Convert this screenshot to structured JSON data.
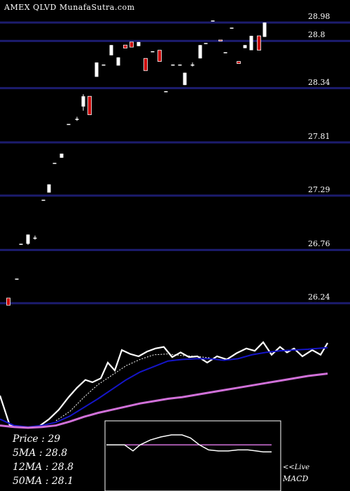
{
  "header": "AMEX  QLVD MunafaSutra.com",
  "chart_data": [
    {
      "type": "candlestick",
      "title": "AMEX  QLVD MunafaSutra.com",
      "ylim": [
        26.05,
        29.2
      ],
      "yticks": [
        28.98,
        28.8,
        28.34,
        27.81,
        27.29,
        26.76,
        26.24
      ],
      "bar_width": 5,
      "candles": [
        {
          "x": 12,
          "o": 26.29,
          "c": 26.22,
          "h": 26.29,
          "l": 26.22
        },
        {
          "x": 24,
          "o": 26.48,
          "c": 26.48,
          "h": 26.48,
          "l": 26.48
        },
        {
          "x": 30,
          "o": 26.81,
          "c": 26.82,
          "h": 26.82,
          "l": 26.81
        },
        {
          "x": 40,
          "o": 26.82,
          "c": 26.91,
          "h": 26.91,
          "l": 26.81
        },
        {
          "x": 50,
          "o": 26.87,
          "c": 26.88,
          "h": 26.9,
          "l": 26.86
        },
        {
          "x": 62,
          "o": 27.25,
          "c": 27.25,
          "h": 27.25,
          "l": 27.25
        },
        {
          "x": 70,
          "o": 27.32,
          "c": 27.4,
          "h": 27.4,
          "l": 27.32
        },
        {
          "x": 78,
          "o": 27.61,
          "c": 27.61,
          "h": 27.61,
          "l": 27.61
        },
        {
          "x": 88,
          "o": 27.66,
          "c": 27.7,
          "h": 27.7,
          "l": 27.66
        },
        {
          "x": 98,
          "o": 27.99,
          "c": 27.99,
          "h": 27.99,
          "l": 27.99
        },
        {
          "x": 110,
          "o": 28.04,
          "c": 28.04,
          "h": 28.06,
          "l": 28.02
        },
        {
          "x": 119,
          "o": 28.16,
          "c": 28.26,
          "h": 28.28,
          "l": 28.12
        },
        {
          "x": 128,
          "o": 28.26,
          "c": 28.08,
          "h": 28.26,
          "l": 28.08
        },
        {
          "x": 138,
          "o": 28.45,
          "c": 28.59,
          "h": 28.59,
          "l": 28.45
        },
        {
          "x": 148,
          "o": 28.57,
          "c": 28.57,
          "h": 28.57,
          "l": 28.57
        },
        {
          "x": 159,
          "o": 28.66,
          "c": 28.76,
          "h": 28.76,
          "l": 28.66
        },
        {
          "x": 169,
          "o": 28.56,
          "c": 28.64,
          "h": 28.64,
          "l": 28.56
        },
        {
          "x": 179,
          "o": 28.76,
          "c": 28.73,
          "h": 28.76,
          "l": 28.73
        },
        {
          "x": 188,
          "o": 28.79,
          "c": 28.74,
          "h": 28.79,
          "l": 28.74
        },
        {
          "x": 198,
          "o": 28.75,
          "c": 28.79,
          "h": 28.79,
          "l": 28.75
        },
        {
          "x": 208,
          "o": 28.63,
          "c": 28.51,
          "h": 28.63,
          "l": 28.51
        },
        {
          "x": 218,
          "o": 28.7,
          "c": 28.7,
          "h": 28.7,
          "l": 28.7
        },
        {
          "x": 228,
          "o": 28.71,
          "c": 28.6,
          "h": 28.71,
          "l": 28.6
        },
        {
          "x": 237,
          "o": 28.31,
          "c": 28.31,
          "h": 28.31,
          "l": 28.31
        },
        {
          "x": 247,
          "o": 28.57,
          "c": 28.57,
          "h": 28.57,
          "l": 28.57
        },
        {
          "x": 257,
          "o": 28.57,
          "c": 28.57,
          "h": 28.57,
          "l": 28.57
        },
        {
          "x": 264,
          "o": 28.37,
          "c": 28.49,
          "h": 28.49,
          "l": 28.37
        },
        {
          "x": 275,
          "o": 28.57,
          "c": 28.57,
          "h": 28.59,
          "l": 28.55
        },
        {
          "x": 286,
          "o": 28.63,
          "c": 28.76,
          "h": 28.76,
          "l": 28.63
        },
        {
          "x": 294,
          "o": 28.78,
          "c": 28.78,
          "h": 28.78,
          "l": 28.78
        },
        {
          "x": 304,
          "o": 29.0,
          "c": 29.0,
          "h": 29.0,
          "l": 29.0
        },
        {
          "x": 315,
          "o": 28.81,
          "c": 28.8,
          "h": 28.81,
          "l": 28.8
        },
        {
          "x": 322,
          "o": 28.69,
          "c": 28.69,
          "h": 28.69,
          "l": 28.69
        },
        {
          "x": 331,
          "o": 28.93,
          "c": 28.93,
          "h": 28.93,
          "l": 28.93
        },
        {
          "x": 341,
          "o": 28.6,
          "c": 28.58,
          "h": 28.6,
          "l": 28.58
        },
        {
          "x": 350,
          "o": 28.73,
          "c": 28.76,
          "h": 28.76,
          "l": 28.73
        },
        {
          "x": 359,
          "o": 28.71,
          "c": 28.85,
          "h": 28.85,
          "l": 28.71
        },
        {
          "x": 370,
          "o": 28.85,
          "c": 28.71,
          "h": 28.85,
          "l": 28.71
        },
        {
          "x": 378,
          "o": 28.84,
          "c": 28.98,
          "h": 28.98,
          "l": 28.84
        }
      ]
    },
    {
      "type": "line",
      "series": [
        {
          "color": "#ffffff",
          "x": [
            0,
            14,
            30,
            44,
            56,
            70,
            84,
            98,
            110,
            122,
            132,
            144,
            154,
            164,
            174,
            186,
            198,
            210,
            222,
            234,
            246,
            258,
            270,
            282,
            296,
            310,
            324,
            338,
            352,
            364,
            376,
            388,
            400,
            410,
            420,
            432,
            446,
            458,
            468
          ],
          "y": [
            28.0,
            27.62,
            27.6,
            27.59,
            27.61,
            27.7,
            27.82,
            27.98,
            28.1,
            28.2,
            28.17,
            28.22,
            28.42,
            28.32,
            28.58,
            28.53,
            28.5,
            28.56,
            28.6,
            28.62,
            28.49,
            28.55,
            28.49,
            28.5,
            28.42,
            28.5,
            28.46,
            28.54,
            28.6,
            28.57,
            28.68,
            28.52,
            28.62,
            28.55,
            28.6,
            28.5,
            28.58,
            28.52,
            28.67
          ]
        },
        {
          "color": "#1515c8",
          "x": [
            0,
            20,
            40,
            60,
            80,
            100,
            120,
            140,
            160,
            180,
            200,
            220,
            240,
            260,
            280,
            300,
            320,
            340,
            360,
            380,
            400,
            420,
            440,
            468
          ],
          "y": [
            27.7,
            27.62,
            27.6,
            27.62,
            27.66,
            27.74,
            27.85,
            27.96,
            28.08,
            28.2,
            28.3,
            28.37,
            28.44,
            28.46,
            28.47,
            28.47,
            28.45,
            28.47,
            28.52,
            28.55,
            28.57,
            28.58,
            28.59,
            28.61
          ]
        },
        {
          "color": "#d070d8",
          "x": [
            0,
            20,
            40,
            60,
            80,
            100,
            120,
            140,
            160,
            180,
            200,
            220,
            240,
            260,
            280,
            300,
            320,
            340,
            360,
            380,
            400,
            420,
            440,
            468
          ],
          "y": [
            27.62,
            27.6,
            27.59,
            27.6,
            27.62,
            27.67,
            27.73,
            27.78,
            27.82,
            27.86,
            27.9,
            27.93,
            27.96,
            27.98,
            28.01,
            28.04,
            28.07,
            28.1,
            28.13,
            28.16,
            28.19,
            28.22,
            28.25,
            28.28
          ]
        },
        {
          "color": "#ffffff",
          "dash": true,
          "x": [
            80,
            100,
            120,
            140,
            160,
            180,
            200,
            220,
            240,
            260,
            280,
            300
          ],
          "y": [
            27.68,
            27.8,
            27.98,
            28.14,
            28.26,
            28.38,
            28.46,
            28.52,
            28.53,
            28.51,
            28.5,
            28.48
          ]
        }
      ]
    },
    {
      "type": "line",
      "title": "MACD",
      "series": [
        {
          "color": "#ffffff",
          "x": [
            152,
            165,
            178,
            190,
            200,
            215,
            230,
            245,
            260,
            272,
            285,
            298,
            312,
            326,
            340,
            354,
            366,
            376,
            388
          ],
          "y": [
            0.01,
            0.01,
            0.01,
            -0.05,
            0.01,
            0.06,
            0.09,
            0.11,
            0.11,
            0.08,
            0.01,
            -0.04,
            -0.05,
            -0.05,
            -0.04,
            -0.04,
            -0.05,
            -0.06,
            -0.06
          ]
        },
        {
          "color": "#d070d8",
          "x": [
            152,
            388
          ],
          "y": [
            0.01,
            0.01
          ]
        }
      ]
    }
  ],
  "stats": [
    {
      "label": "Price",
      "value": ": 29"
    },
    {
      "label": "5MA",
      "value": ": 28.8"
    },
    {
      "label": "12MA",
      "value": ": 28.8"
    },
    {
      "label": "50MA",
      "value": ": 28.1"
    }
  ],
  "live_label": "<<Live",
  "macd_label": "MACD",
  "colors": {
    "grid": "#1c1c6e",
    "up": "#ffffff",
    "down": "#cc0000",
    "background": "#000000"
  }
}
